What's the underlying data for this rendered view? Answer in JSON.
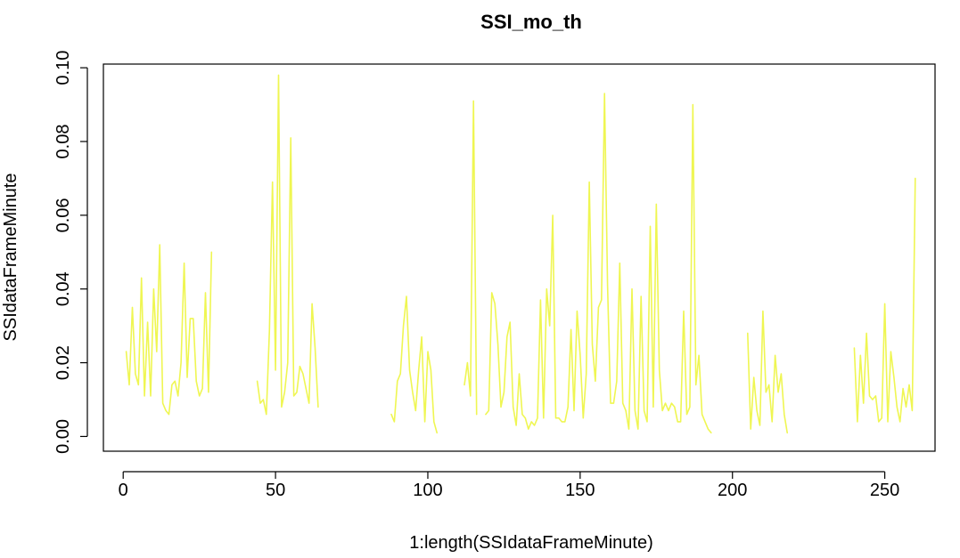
{
  "chart_data": {
    "type": "line",
    "title": "SSI_mo_th",
    "xlabel": "1:length(SSIdataFrameMinute)",
    "ylabel": "SSIdataFrameMinute",
    "xlim": [
      -6.5,
      266.5
    ],
    "ylim": [
      -0.004,
      0.101
    ],
    "x_ticks": [
      0,
      50,
      100,
      150,
      200,
      250
    ],
    "x_tick_labels": [
      "0",
      "50",
      "100",
      "150",
      "200",
      "250"
    ],
    "y_ticks": [
      0,
      0.02,
      0.04,
      0.06,
      0.08,
      0.1
    ],
    "y_tick_labels": [
      "0.00",
      "0.02",
      "0.04",
      "0.06",
      "0.08",
      "0.10"
    ],
    "grid": false,
    "legend": "none",
    "color": "#EFF652",
    "series": [
      {
        "segments": [
          {
            "x": [
              1,
              2,
              3,
              4,
              5,
              6,
              7,
              8,
              9,
              10,
              11,
              12,
              13,
              14,
              15,
              16,
              17,
              18,
              19,
              20,
              21,
              22,
              23,
              24,
              25,
              26,
              27,
              28,
              29
            ],
            "y": [
              0.023,
              0.014,
              0.035,
              0.017,
              0.014,
              0.043,
              0.011,
              0.031,
              0.011,
              0.04,
              0.023,
              0.052,
              0.009,
              0.007,
              0.006,
              0.014,
              0.015,
              0.011,
              0.02,
              0.047,
              0.016,
              0.032,
              0.032,
              0.015,
              0.011,
              0.013,
              0.039,
              0.012,
              0.05
            ]
          },
          {
            "x": [
              44,
              45,
              46,
              47,
              48,
              49,
              50,
              51,
              52,
              53,
              54,
              55,
              56,
              57,
              58,
              59,
              60,
              61,
              62,
              63,
              64
            ],
            "y": [
              0.015,
              0.009,
              0.01,
              0.006,
              0.029,
              0.069,
              0.018,
              0.098,
              0.008,
              0.012,
              0.02,
              0.081,
              0.011,
              0.012,
              0.019,
              0.017,
              0.013,
              0.009,
              0.036,
              0.024,
              0.008
            ]
          },
          {
            "x": [
              88,
              89,
              90,
              91,
              92,
              93,
              94,
              95,
              96,
              97,
              98,
              99,
              100,
              101,
              102,
              103
            ],
            "y": [
              0.006,
              0.004,
              0.015,
              0.017,
              0.03,
              0.038,
              0.018,
              0.012,
              0.007,
              0.018,
              0.027,
              0.004,
              0.023,
              0.018,
              0.004,
              0.001
            ]
          },
          {
            "x": [
              112,
              113,
              114,
              115,
              116
            ],
            "y": [
              0.014,
              0.02,
              0.011,
              0.091,
              0.006
            ]
          },
          {
            "x": [
              119,
              120,
              121,
              122,
              123,
              124,
              125,
              126,
              127,
              128,
              129,
              130,
              131,
              132,
              133,
              134,
              135,
              136,
              137,
              138,
              139,
              140,
              141,
              142,
              143,
              144,
              145,
              146,
              147,
              148,
              149,
              150,
              151,
              152,
              153,
              154,
              155,
              156,
              157,
              158,
              159,
              160,
              161,
              162,
              163,
              164,
              165,
              166,
              167,
              168,
              169,
              170,
              171,
              172,
              173,
              174,
              175,
              176,
              177,
              178,
              179,
              180,
              181,
              182,
              183,
              184,
              185,
              186,
              187,
              188,
              189,
              190,
              191,
              192,
              193
            ],
            "y": [
              0.006,
              0.007,
              0.039,
              0.036,
              0.025,
              0.008,
              0.012,
              0.027,
              0.031,
              0.008,
              0.003,
              0.017,
              0.006,
              0.005,
              0.002,
              0.004,
              0.003,
              0.005,
              0.037,
              0.005,
              0.04,
              0.03,
              0.06,
              0.005,
              0.005,
              0.004,
              0.004,
              0.008,
              0.029,
              0.007,
              0.034,
              0.022,
              0.005,
              0.017,
              0.069,
              0.025,
              0.015,
              0.035,
              0.037,
              0.093,
              0.041,
              0.009,
              0.009,
              0.015,
              0.047,
              0.009,
              0.007,
              0.002,
              0.04,
              0.007,
              0.002,
              0.038,
              0.007,
              0.004,
              0.057,
              0.008,
              0.063,
              0.018,
              0.007,
              0.009,
              0.007,
              0.009,
              0.008,
              0.004,
              0.004,
              0.034,
              0.006,
              0.008,
              0.09,
              0.014,
              0.022,
              0.006,
              0.004,
              0.002,
              0.001
            ]
          },
          {
            "x": [
              205,
              206,
              207,
              208,
              209,
              210,
              211,
              212,
              213,
              214,
              215,
              216,
              217,
              218
            ],
            "y": [
              0.028,
              0.002,
              0.016,
              0.007,
              0.003,
              0.034,
              0.012,
              0.014,
              0.004,
              0.022,
              0.012,
              0.017,
              0.006,
              0.001
            ]
          },
          {
            "x": [
              240,
              241,
              242,
              243,
              244,
              245,
              246,
              247,
              248,
              249,
              250,
              251,
              252,
              253,
              254,
              255,
              256,
              257,
              258,
              259,
              260
            ],
            "y": [
              0.024,
              0.004,
              0.022,
              0.009,
              0.028,
              0.011,
              0.01,
              0.011,
              0.004,
              0.005,
              0.036,
              0.004,
              0.023,
              0.016,
              0.008,
              0.004,
              0.013,
              0.008,
              0.014,
              0.007,
              0.07
            ]
          }
        ]
      }
    ]
  }
}
